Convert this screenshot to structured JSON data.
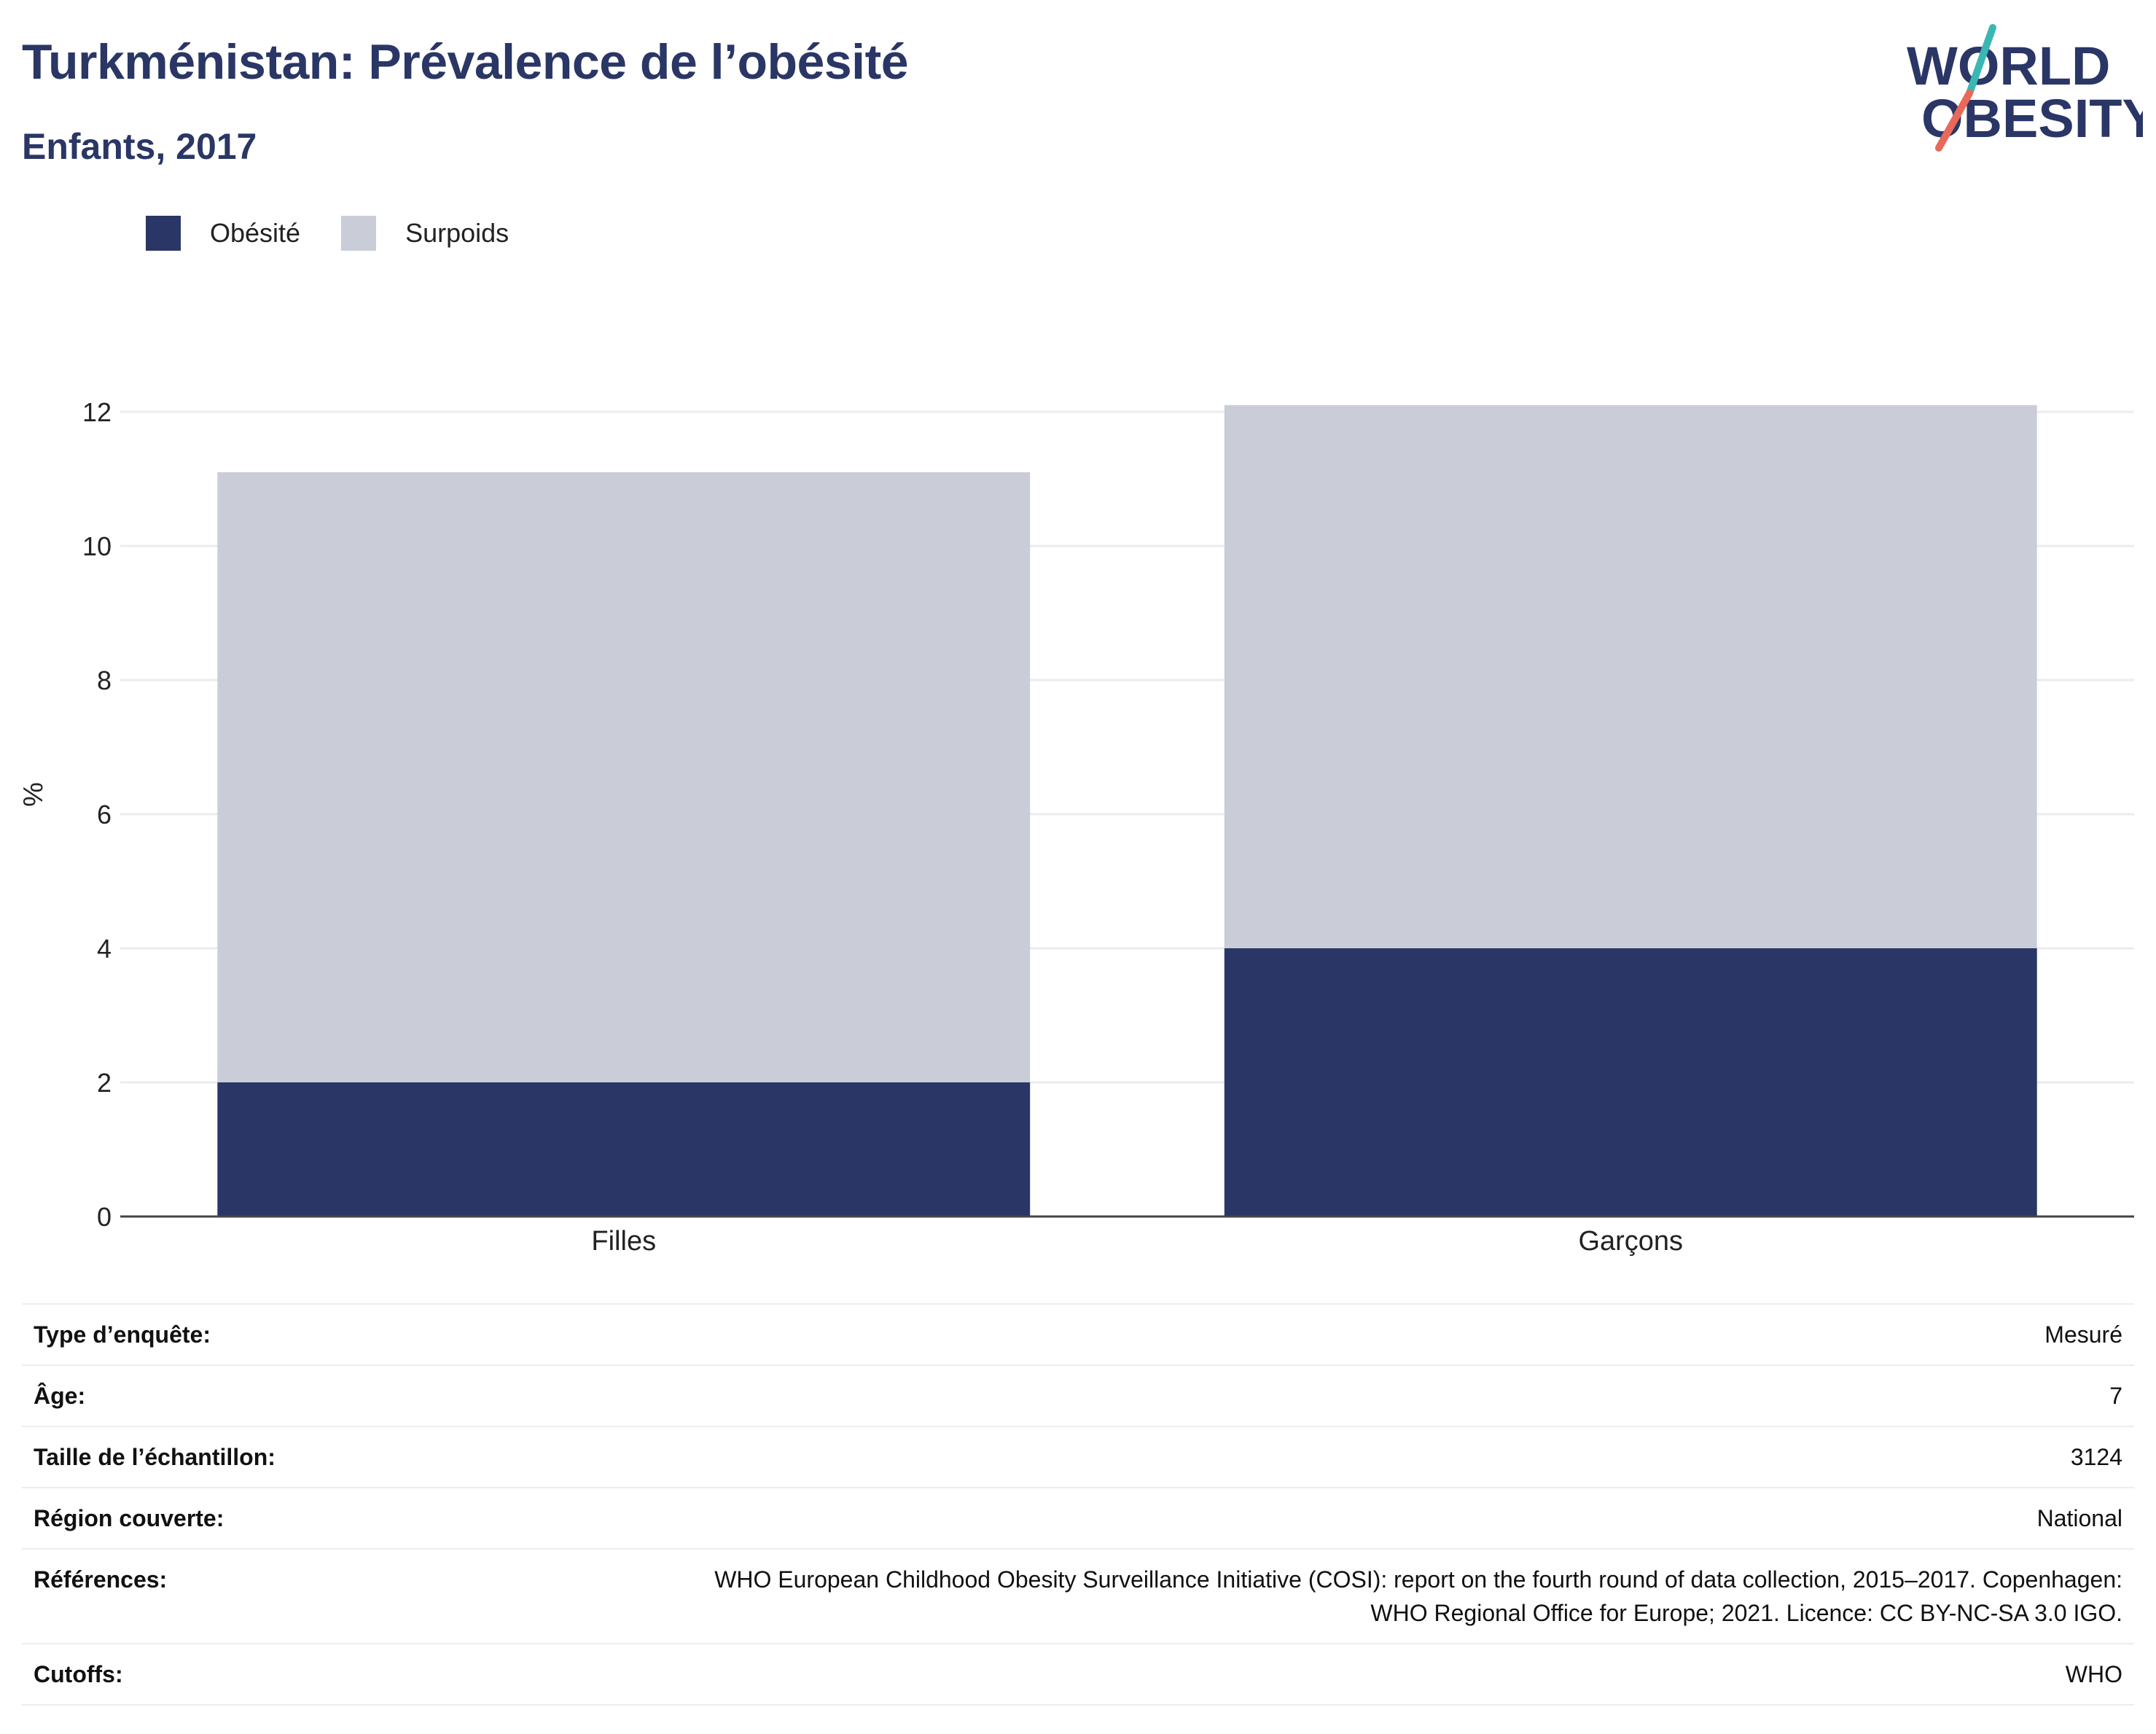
{
  "header": {
    "title": "Turkménistan: Prévalence de l’obésité",
    "subtitle": "Enfants, 2017"
  },
  "logo": {
    "line1": "WORLD",
    "line2": "OBESITY",
    "accent": "#e8695a",
    "accent2": "#3ab7b3",
    "text_color": "#2a3665"
  },
  "legend": [
    {
      "label": "Obésité",
      "color": "#2a3665"
    },
    {
      "label": "Surpoids",
      "color": "#cacdd8"
    }
  ],
  "chart_data": {
    "type": "bar",
    "stacked": true,
    "categories": [
      "Filles",
      "Garçons"
    ],
    "series": [
      {
        "name": "Obésité",
        "color": "#2a3665",
        "values": [
          2.0,
          4.0
        ]
      },
      {
        "name": "Surpoids",
        "color": "#cacdd8",
        "values": [
          9.1,
          8.1
        ]
      }
    ],
    "ylabel": "%",
    "ylim": [
      0,
      12
    ],
    "yticks": [
      0,
      2,
      4,
      6,
      8,
      10,
      12
    ],
    "grid": true,
    "legend_position": "top-left"
  },
  "details": {
    "rows": [
      {
        "key": "Type d’enquête:",
        "value": "Mesuré"
      },
      {
        "key": "Âge:",
        "value": "7"
      },
      {
        "key": "Taille de l’échantillon:",
        "value": "3124"
      },
      {
        "key": "Région couverte:",
        "value": "National"
      },
      {
        "key": "Références:",
        "value_line1": "WHO European Childhood Obesity Surveillance Initiative (COSI): report on the fourth round of data collection, 2015–2017. Copenhagen:",
        "value_line2": "WHO Regional Office for Europe; 2021. Licence: CC BY-NC-SA 3.0 IGO."
      },
      {
        "key": "Cutoffs:",
        "value": "WHO"
      }
    ]
  }
}
